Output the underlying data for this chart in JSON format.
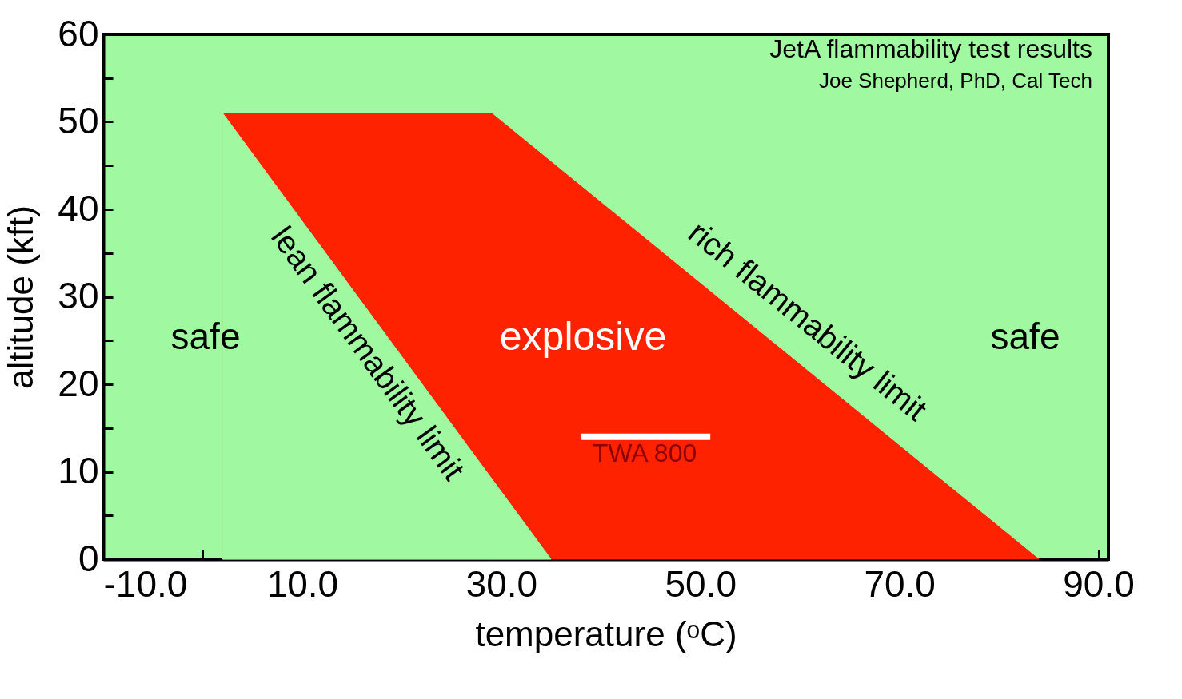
{
  "chart_data": {
    "type": "area",
    "title": "JetA flammability test results",
    "subtitle": "Joe Shepherd, PhD, Cal Tech",
    "xlabel": "temperature (ᵒC)",
    "ylabel": "altitude (kft)",
    "xlim": [
      -10,
      91
    ],
    "ylim": [
      0,
      60
    ],
    "xticks": [
      {
        "value": -10,
        "label": "-10.0"
      },
      {
        "value": 0,
        "label": null
      },
      {
        "value": 10,
        "label": "10.0"
      },
      {
        "value": 20,
        "label": null
      },
      {
        "value": 30,
        "label": "30.0"
      },
      {
        "value": 40,
        "label": null
      },
      {
        "value": 50,
        "label": "50.0"
      },
      {
        "value": 60,
        "label": null
      },
      {
        "value": 70,
        "label": "70.0"
      },
      {
        "value": 80,
        "label": null
      },
      {
        "value": 90,
        "label": "90.0"
      }
    ],
    "yticks": [
      0,
      {
        "value": 5,
        "label": null
      },
      10,
      {
        "value": 15,
        "label": null
      },
      20,
      {
        "value": 25,
        "label": null
      },
      30,
      {
        "value": 35,
        "label": null
      },
      40,
      {
        "value": 45,
        "label": null
      },
      50,
      {
        "value": 55,
        "label": null
      },
      60
    ],
    "series": [
      {
        "color": "#ff2200",
        "x": [
          2,
          29,
          84
        ],
        "values": [
          51,
          51,
          0
        ]
      },
      {
        "color": "#a0f8a0",
        "x": [
          2,
          35
        ],
        "values": [
          51,
          0
        ]
      },
      {
        "type": "line",
        "color": "#ffffff",
        "x": [
          38,
          51
        ],
        "values": [
          14,
          14
        ]
      }
    ],
    "annotations": [
      "safe",
      "safe",
      "explosive",
      "lean flammability limit",
      "rich flammability limit",
      "TWA 800"
    ]
  }
}
